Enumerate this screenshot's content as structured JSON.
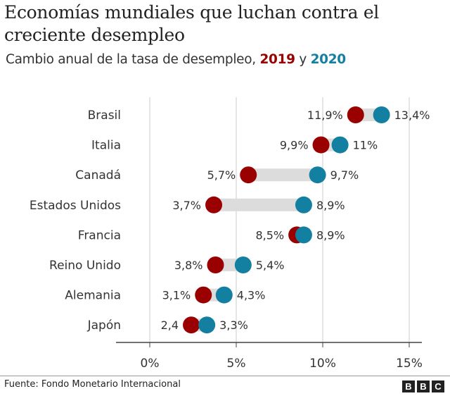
{
  "chart_data": {
    "type": "dumbbell",
    "title": "Economías mundiales que luchan contra el creciente desempleo",
    "subtitle_prefix": "Cambio anual de la tasa de desempleo,",
    "subtitle_joiner": "y",
    "series": [
      {
        "name": "2019",
        "color": "#9b0000",
        "values": [
          11.9,
          9.9,
          5.7,
          3.7,
          8.5,
          3.8,
          3.1,
          2.4
        ],
        "labels": [
          "11,9%",
          "9,9%",
          "5,7%",
          "3,7%",
          "8,5%",
          "3,8%",
          "3,1%",
          "2,4"
        ]
      },
      {
        "name": "2020",
        "color": "#1380a1",
        "values": [
          13.4,
          11,
          9.7,
          8.9,
          8.9,
          5.4,
          4.3,
          3.3
        ],
        "labels": [
          "13,4%",
          "11%",
          "9,7%",
          "8,9%",
          "8,9%",
          "5,4%",
          "4,3%",
          "3,3%"
        ]
      }
    ],
    "categories": [
      "Brasil",
      "Italia",
      "Canadá",
      "Estados Unidos",
      "Francia",
      "Reino Unido",
      "Alemania",
      "Japón"
    ],
    "xlim": [
      0,
      15
    ],
    "xticks": [
      0,
      5,
      10,
      15
    ],
    "xtick_labels": [
      "0%",
      "5%",
      "10%",
      "15%"
    ],
    "grid": "vertical",
    "connector_color": "#dcdcdc"
  },
  "footer": {
    "source": "Fuente: Fondo Monetario Internacional",
    "logo": "BBC"
  }
}
